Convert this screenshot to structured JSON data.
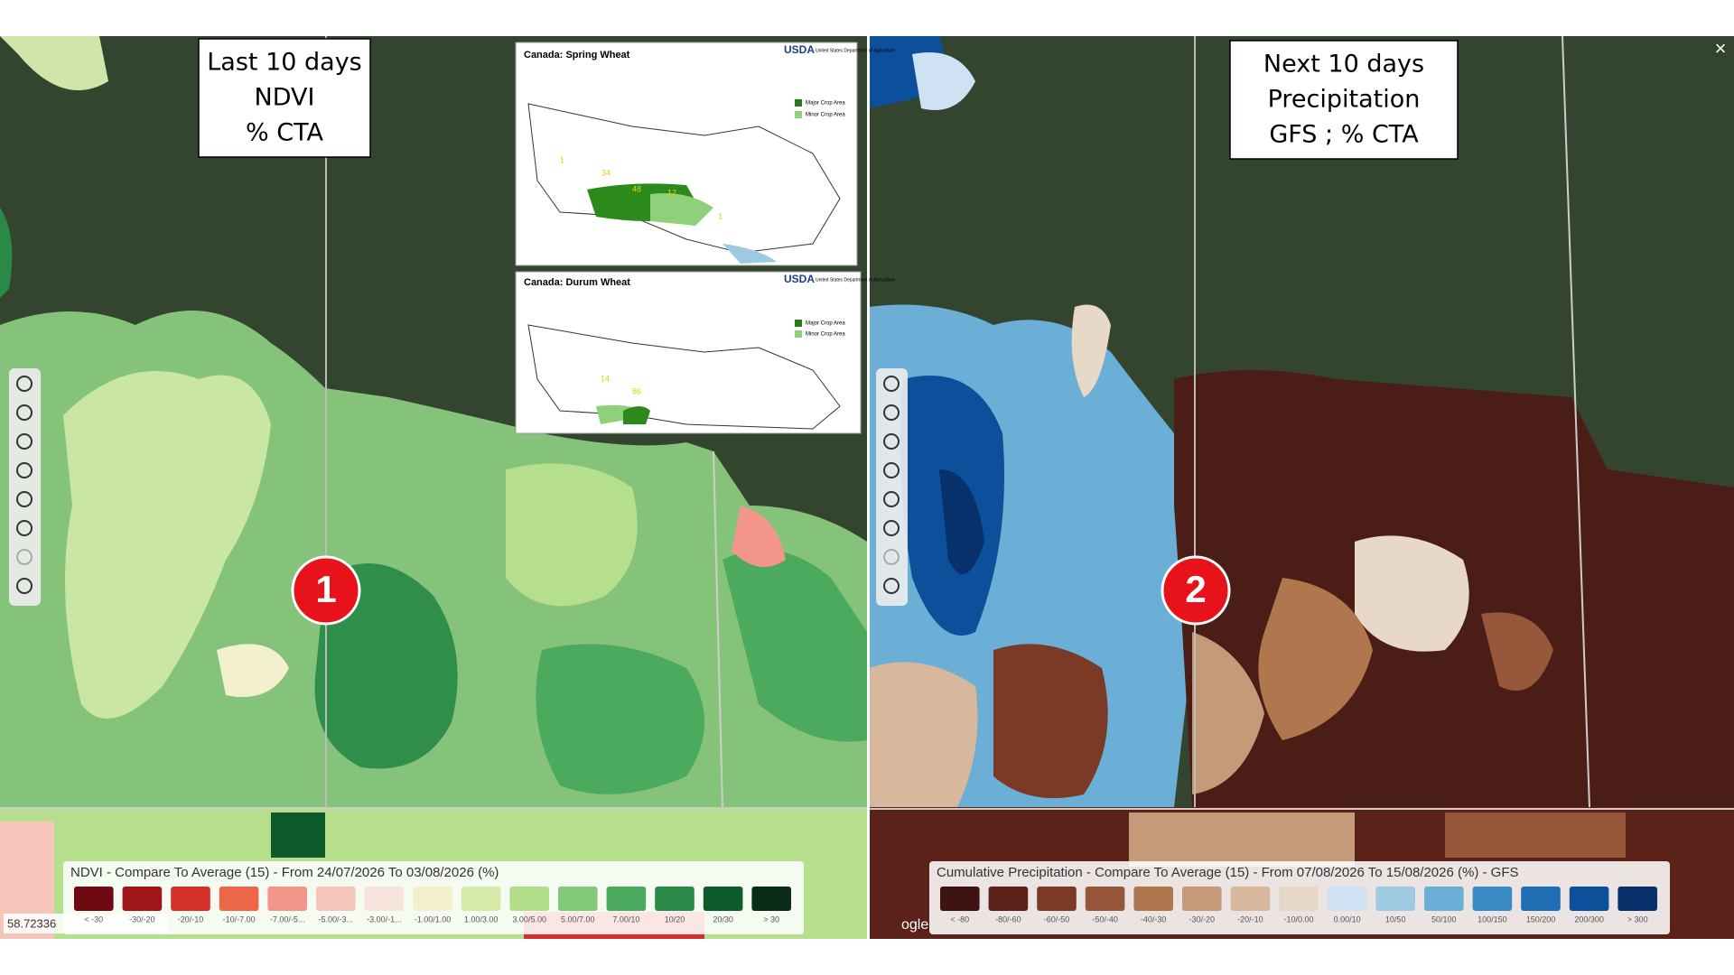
{
  "left_panel": {
    "label_lines": [
      "Last 10 days",
      "NDVI",
      "% CTA"
    ],
    "marker": "1",
    "legend": {
      "title": "NDVI - Compare To Average (15) - From 24/07/2026 To 03/08/2026 (%)",
      "items": [
        {
          "label": "< -30",
          "color": "#6e0a10"
        },
        {
          "label": "-30/-20",
          "color": "#a0151a"
        },
        {
          "label": "-20/-10",
          "color": "#d5302a"
        },
        {
          "label": "-10/-7.00",
          "color": "#ee6648"
        },
        {
          "label": "-7.00/-5...",
          "color": "#f3958b"
        },
        {
          "label": "-5.00/-3...",
          "color": "#f6c5ba"
        },
        {
          "label": "-3.00/-1...",
          "color": "#f6e3dc"
        },
        {
          "label": "-1.00/1.00",
          "color": "#f3f1cd"
        },
        {
          "label": "1.00/3.00",
          "color": "#d6eba7"
        },
        {
          "label": "3.00/5.00",
          "color": "#b2dd8b"
        },
        {
          "label": "5.00/7.00",
          "color": "#83c779"
        },
        {
          "label": "7.00/10",
          "color": "#4caa5e"
        },
        {
          "label": "10/20",
          "color": "#2b8947"
        },
        {
          "label": "20/30",
          "color": "#0d5a2b"
        },
        {
          "label": "> 30",
          "color": "#0a2d1a"
        }
      ]
    }
  },
  "right_panel": {
    "label_lines": [
      "Next 10 days",
      "Precipitation",
      "GFS ; % CTA"
    ],
    "marker": "2",
    "watermark": "ogle",
    "close": "×",
    "legend": {
      "title": "Cumulative Precipitation - Compare To Average (15) - From 07/08/2026 To 15/08/2026 (%) - GFS",
      "items": [
        {
          "label": "< -80",
          "color": "#3d1410"
        },
        {
          "label": "-80/-60",
          "color": "#5a2219"
        },
        {
          "label": "-60/-50",
          "color": "#7a3a26"
        },
        {
          "label": "-50/-40",
          "color": "#96573a"
        },
        {
          "label": "-40/-30",
          "color": "#b0774f"
        },
        {
          "label": "-30/-20",
          "color": "#c59a78"
        },
        {
          "label": "-20/-10",
          "color": "#d8b89c"
        },
        {
          "label": "-10/0.00",
          "color": "#e8d8c8"
        },
        {
          "label": "0.00/10",
          "color": "#cfe2f3"
        },
        {
          "label": "10/50",
          "color": "#9ecae1"
        },
        {
          "label": "50/100",
          "color": "#6baed6"
        },
        {
          "label": "100/150",
          "color": "#3b8bc6"
        },
        {
          "label": "150/200",
          "color": "#1f6eb4"
        },
        {
          "label": "200/300",
          "color": "#0c4f9a"
        },
        {
          "label": "> 300",
          "color": "#08306b"
        }
      ]
    }
  },
  "insets": [
    {
      "title": "Canada:  Spring Wheat",
      "agency": "USDA",
      "agency_name": "United States Department of Agriculture",
      "legend": [
        "Major Crop Area",
        "Minor Crop Area"
      ],
      "numbers": [
        "1",
        "34",
        "48",
        "12",
        "1"
      ]
    },
    {
      "title": "Canada:  Durum Wheat",
      "agency": "USDA",
      "agency_name": "United States Department of Agriculture",
      "legend": [
        "Major Crop Area",
        "Minor Crop Area"
      ],
      "numbers": [
        "14",
        "86"
      ]
    }
  ],
  "coordinates": "58.72336"
}
